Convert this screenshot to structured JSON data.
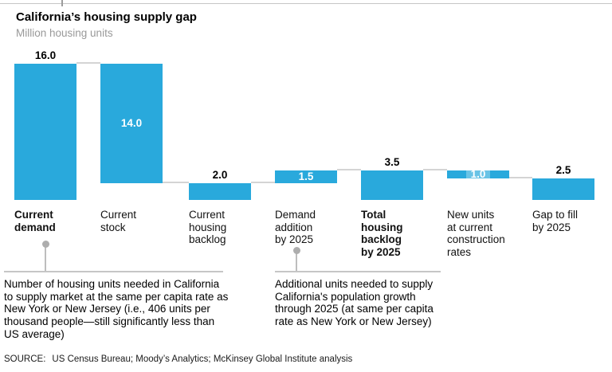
{
  "header": {
    "title": "California’s housing supply gap",
    "subtitle": "Million housing units"
  },
  "colors": {
    "bar": "#29a9dc",
    "connector": "#d4d4d4",
    "callout": "#adadad"
  },
  "chart_data": {
    "type": "bar",
    "subtype": "waterfall",
    "title": "California’s housing supply gap",
    "ylabel": "Million housing units",
    "xlabel": "",
    "ylim": [
      0,
      16
    ],
    "grid": false,
    "categories": [
      "Current demand",
      "Current stock",
      "Current housing backlog",
      "Demand addition by 2025",
      "Total housing backlog by 2025",
      "New units at current construction rates",
      "Gap to fill by 2025"
    ],
    "values": [
      16.0,
      14.0,
      2.0,
      1.5,
      3.5,
      1.0,
      2.5
    ],
    "segments": [
      {
        "label": "Current demand",
        "lines": [
          "Current",
          "demand"
        ],
        "display": "16.0",
        "value": 16.0,
        "base": 0,
        "top": 16,
        "label_inside": false,
        "bold": true
      },
      {
        "label": "Current stock",
        "lines": [
          "Current",
          "stock"
        ],
        "display": "14.0",
        "value": 14.0,
        "base": 2,
        "top": 16,
        "label_inside": true,
        "bold": false
      },
      {
        "label": "Current housing backlog",
        "lines": [
          "Current",
          "housing",
          "backlog"
        ],
        "display": "2.0",
        "value": 2.0,
        "base": 0,
        "top": 2,
        "label_inside": false,
        "bold": false
      },
      {
        "label": "Demand addition by 2025",
        "lines": [
          "Demand",
          "addition",
          "by 2025"
        ],
        "display": "1.5",
        "value": 1.5,
        "base": 2,
        "top": 3.5,
        "label_inside": true,
        "bold": false
      },
      {
        "label": "Total housing backlog by 2025",
        "lines": [
          "Total",
          "housing",
          "backlog",
          "by 2025"
        ],
        "display": "3.5",
        "value": 3.5,
        "base": 0,
        "top": 3.5,
        "label_inside": false,
        "bold": true
      },
      {
        "label": "New units at current construction rates",
        "lines": [
          "New units",
          "at current",
          "construction",
          "rates"
        ],
        "display": "1.0",
        "value": 1.0,
        "base": 2.5,
        "top": 3.5,
        "label_inside": true,
        "bold": false
      },
      {
        "label": "Gap to fill by 2025",
        "lines": [
          "Gap to fill",
          "by 2025"
        ],
        "display": "2.5",
        "value": 2.5,
        "base": 0,
        "top": 2.5,
        "label_inside": false,
        "bold": false
      }
    ]
  },
  "annotations": [
    {
      "attached_to": "Current demand",
      "text": "Number of housing units needed in California to supply market at the same per capita rate as New York or New Jersey (i.e., 406 units per thousand people—still significantly less than US average)"
    },
    {
      "attached_to": "Demand addition by 2025",
      "text": "Additional units needed to supply California's population growth through 2025 (at same per capita rate as New York or New Jersey)"
    }
  ],
  "source": {
    "label": "SOURCE:",
    "text": "US Census Bureau; Moody’s Analytics; McKinsey Global Institute analysis"
  }
}
